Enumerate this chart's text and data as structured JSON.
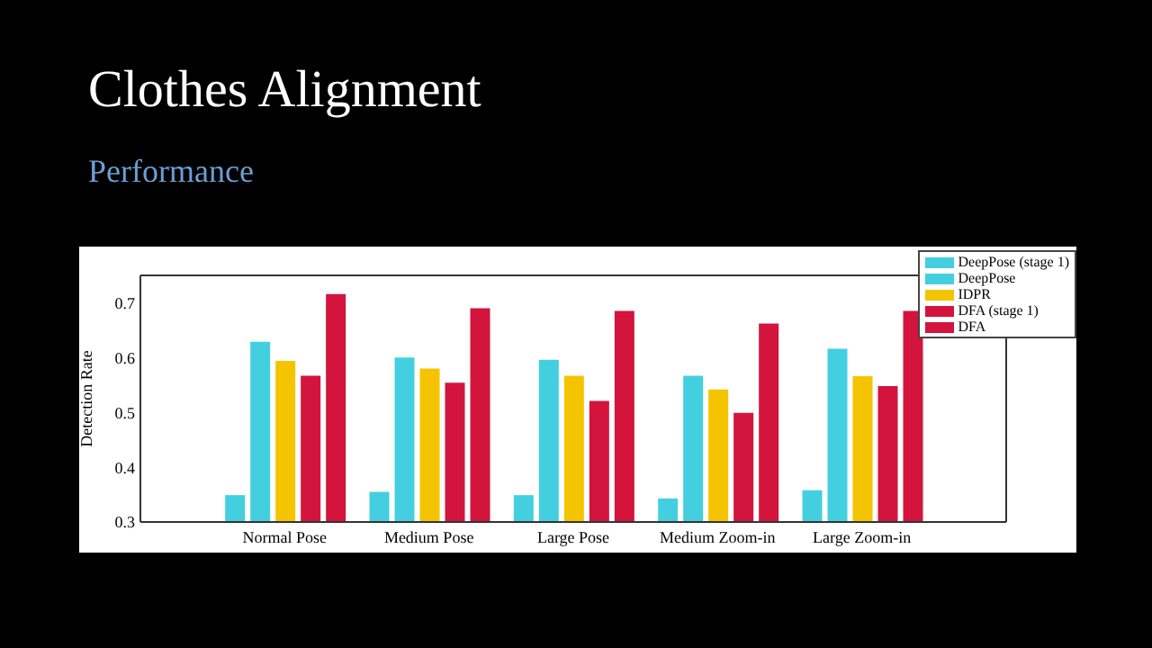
{
  "chart_data": {
    "type": "bar",
    "title": "Clothes Alignment",
    "subtitle": "Performance",
    "ylabel": "Detection Rate",
    "categories": [
      "Normal Pose",
      "Medium Pose",
      "Large Pose",
      "Medium Zoom-in",
      "Large Zoom-in"
    ],
    "series": [
      {
        "name": "DeepPose (stage 1)",
        "color": "#44cfe0",
        "values": [
          0.349,
          0.355,
          0.349,
          0.343,
          0.358
        ]
      },
      {
        "name": "DeepPose",
        "color": "#44cfe0",
        "values": [
          0.629,
          0.6,
          0.596,
          0.567,
          0.616
        ]
      },
      {
        "name": "IDPR",
        "color": "#f5c400",
        "values": [
          0.594,
          0.58,
          0.567,
          0.542,
          0.566
        ]
      },
      {
        "name": "DFA (stage 1)",
        "color": "#d3143c",
        "values": [
          0.567,
          0.554,
          0.521,
          0.499,
          0.548
        ]
      },
      {
        "name": "DFA",
        "color": "#d3143c",
        "values": [
          0.716,
          0.69,
          0.685,
          0.662,
          0.685
        ]
      }
    ],
    "ylim": [
      0.3,
      0.75
    ],
    "yticks": [
      0.3,
      0.4,
      0.5,
      0.6,
      0.7
    ],
    "grid": false,
    "legend": "top right"
  }
}
